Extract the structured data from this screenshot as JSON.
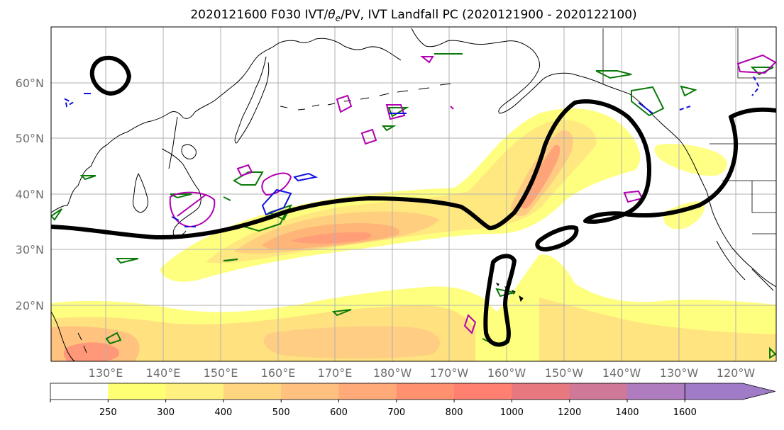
{
  "title": {
    "prefix": "2020121600 F030 IVT/",
    "theta": "θ",
    "sub": "e",
    "suffix": "/PV, IVT Landfall PC (2020121900 - 2020122100)"
  },
  "map": {
    "lat_labels": [
      "60°N",
      "50°N",
      "40°N",
      "30°N",
      "20°N"
    ],
    "lon_labels": [
      "130°E",
      "140°E",
      "150°E",
      "160°E",
      "170°E",
      "180°W",
      "170°W",
      "160°W",
      "150°W",
      "140°W",
      "130°W",
      "120°W"
    ],
    "colors": {
      "ocean": "#ffffff",
      "coast": "#000000",
      "grid": "#b0b0b0",
      "landfall_contour": "#000000",
      "theta_e": "#0a7a0a",
      "pv_positive": "#b000b0",
      "pv_negative": "#1010e0"
    }
  },
  "colorbar": {
    "ticks": [
      "250",
      "300",
      "400",
      "500",
      "600",
      "700",
      "800",
      "1000",
      "1200",
      "1400",
      "1600"
    ],
    "colors": [
      "#ffffff",
      "#ffff73",
      "#fff080",
      "#ffd580",
      "#ffc080",
      "#ffaa78",
      "#ff9070",
      "#ff7f70",
      "#e87880",
      "#d07898",
      "#b07cc0",
      "#a07cc8"
    ]
  }
}
